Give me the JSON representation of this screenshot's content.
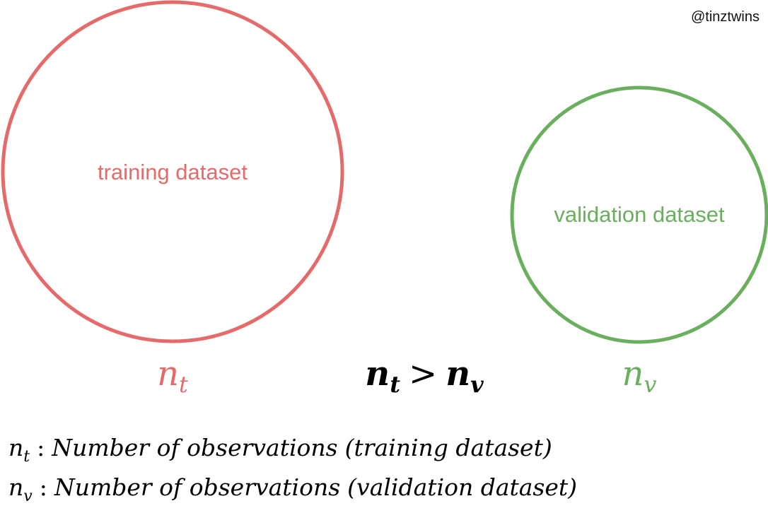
{
  "watermark": "@tinztwins",
  "nodes": [
    {
      "label": "training dataset",
      "symbol": {
        "base": "n",
        "sub": "t"
      }
    },
    {
      "label": "validation dataset",
      "symbol": {
        "base": "n",
        "sub": "v"
      }
    }
  ],
  "relation": {
    "left": {
      "base": "n",
      "sub": "t"
    },
    "operator": ">",
    "right": {
      "base": "n",
      "sub": "v"
    }
  },
  "legend": [
    {
      "symbol": {
        "base": "n",
        "sub": "t"
      },
      "separator": ":",
      "text": "Number of observations",
      "detail": "(training dataset)"
    },
    {
      "symbol": {
        "base": "n",
        "sub": "v"
      },
      "separator": ":",
      "text": "Number of observations",
      "detail": "(validation dataset)"
    }
  ]
}
